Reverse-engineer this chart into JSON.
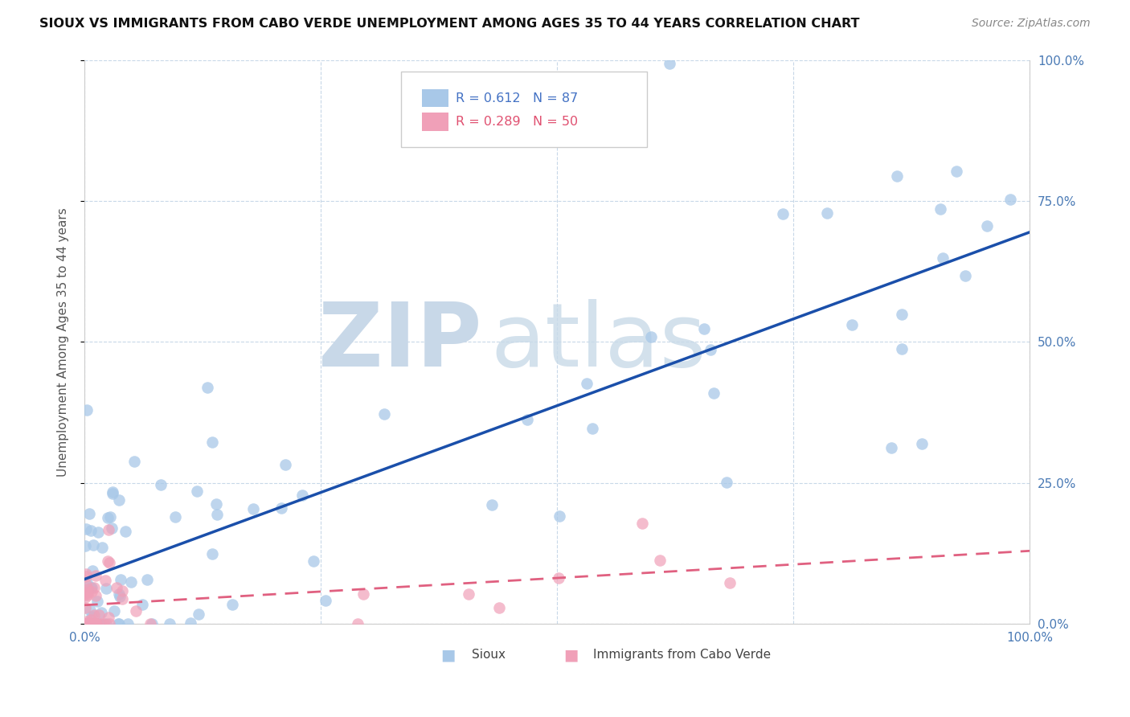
{
  "title": "SIOUX VS IMMIGRANTS FROM CABO VERDE UNEMPLOYMENT AMONG AGES 35 TO 44 YEARS CORRELATION CHART",
  "source": "Source: ZipAtlas.com",
  "ylabel": "Unemployment Among Ages 35 to 44 years",
  "sioux_R": 0.612,
  "sioux_N": 87,
  "cabo_R": 0.289,
  "cabo_N": 50,
  "sioux_color": "#a8c8e8",
  "cabo_color": "#f0a0b8",
  "sioux_line_color": "#1a4faa",
  "cabo_line_color": "#e06080",
  "watermark_zip_color": "#c8d8e8",
  "watermark_atlas_color": "#c8dae8",
  "background_color": "#ffffff",
  "grid_color": "#c8d8e8",
  "tick_label_color": "#4a7ab5",
  "legend_sioux_text_color": "#4472c4",
  "legend_cabo_text_color": "#e05070",
  "bottom_legend_sioux_color": "#a8c8e8",
  "bottom_legend_cabo_color": "#f0a0b8",
  "sioux_seed": 42,
  "cabo_seed": 99
}
